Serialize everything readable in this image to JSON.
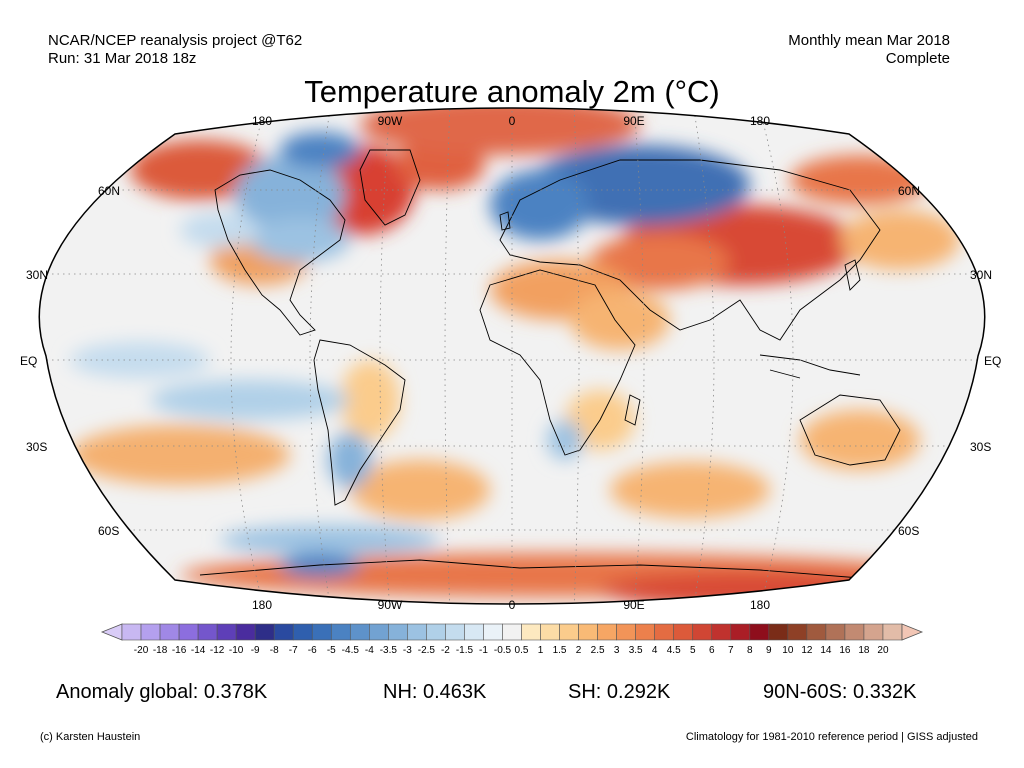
{
  "header": {
    "line1_left": "NCAR/NCEP reanalysis project @T62",
    "line2_left": "Run: 31 Mar 2018 18z",
    "line1_right": "Monthly mean Mar 2018",
    "line2_right": "Complete"
  },
  "title": "Temperature anomaly 2m (°C)",
  "map": {
    "projection": "Robinson",
    "top_ticks": [
      "180",
      "90W",
      "0",
      "90E",
      "180"
    ],
    "bottom_ticks": [
      "180",
      "90W",
      "0",
      "90E",
      "180"
    ],
    "left_lat_ticks": [
      "60N",
      "30N",
      "EQ",
      "30S",
      "60S"
    ],
    "right_lat_ticks": [
      "60N",
      "30N",
      "EQ",
      "30S",
      "60S"
    ],
    "gridlines": "dotted",
    "background_color": "#f2f2f2",
    "coastline_color": "#000000"
  },
  "colorbar": {
    "labels": [
      "-20",
      "-18",
      "-16",
      "-14",
      "-12",
      "-10",
      "-9",
      "-8",
      "-7",
      "-6",
      "-5",
      "-4.5",
      "-4",
      "-3.5",
      "-3",
      "-2.5",
      "-2",
      "-1.5",
      "-1",
      "-0.5",
      "0.5",
      "1",
      "1.5",
      "2",
      "2.5",
      "3",
      "3.5",
      "4",
      "4.5",
      "5",
      "6",
      "7",
      "8",
      "9",
      "10",
      "12",
      "14",
      "16",
      "18",
      "20"
    ],
    "low_arrow_color": "#d9ccf7",
    "high_arrow_color": "#f2c6b5",
    "colors": [
      "#c8b8f2",
      "#b4a0ee",
      "#a088e6",
      "#8c6ede",
      "#7456cc",
      "#5e3fb8",
      "#4a2c9e",
      "#2e2e88",
      "#2a4aa0",
      "#2f5fae",
      "#3a70b8",
      "#4b82c2",
      "#5e92ca",
      "#72a2d2",
      "#86b2da",
      "#9cc2e2",
      "#b0d0e8",
      "#c4dcee",
      "#d8e8f4",
      "#eaf2f8",
      "#f2f2f2",
      "#fde9c0",
      "#fcdca6",
      "#fbcc8c",
      "#f9ba76",
      "#f6a664",
      "#f29458",
      "#ec804c",
      "#e46c42",
      "#dc5a3a",
      "#d04634",
      "#c0322e",
      "#aa1e26",
      "#8e0e1c",
      "#7a2c18",
      "#8e4026",
      "#a05a3e",
      "#b07258",
      "#c28a72",
      "#d4a48e",
      "#e2bca8"
    ]
  },
  "stats": {
    "global": "Anomaly global: 0.378K",
    "nh": "NH: 0.463K",
    "sh": "SH: 0.292K",
    "band": "90N-60S: 0.332K"
  },
  "footer": {
    "left": "(c) Karsten Haustein",
    "right": "Climatology for 1981-2010 reference period | GISS adjusted"
  }
}
